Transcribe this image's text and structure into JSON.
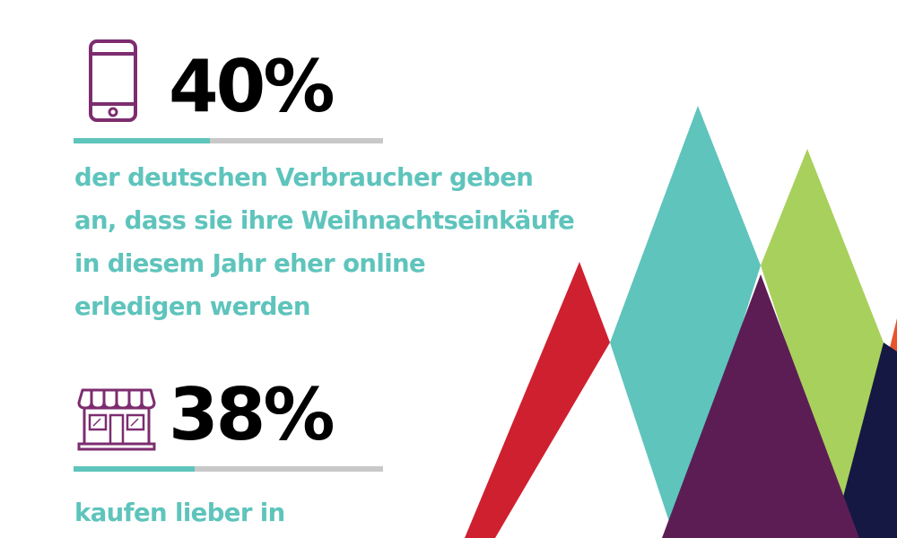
{
  "stats": [
    {
      "value": "40%",
      "icon": "smartphone-icon",
      "description_lines": [
        "der deutschen Verbraucher geben",
        "an, dass sie ihre Weihnachtseinkäufe",
        "in diesem Jahr eher online",
        "erledigen werden"
      ]
    },
    {
      "value": "38%",
      "icon": "storefront-icon",
      "description_lines": [
        "kaufen lieber in"
      ]
    }
  ],
  "colors": {
    "background": "#ffffff",
    "value_text": "#000000",
    "description_text": "#5ec4bc",
    "rule_track": "#c8c8c8",
    "rule_fill": "#5ec4bc",
    "icon": "#7d2d6f",
    "decor_red": "#cf2030",
    "decor_teal": "#5ec4bc",
    "decor_green": "#a8d05c",
    "decor_purple": "#5c1d55",
    "decor_navy": "#151842",
    "decor_orange": "#e9542c"
  }
}
